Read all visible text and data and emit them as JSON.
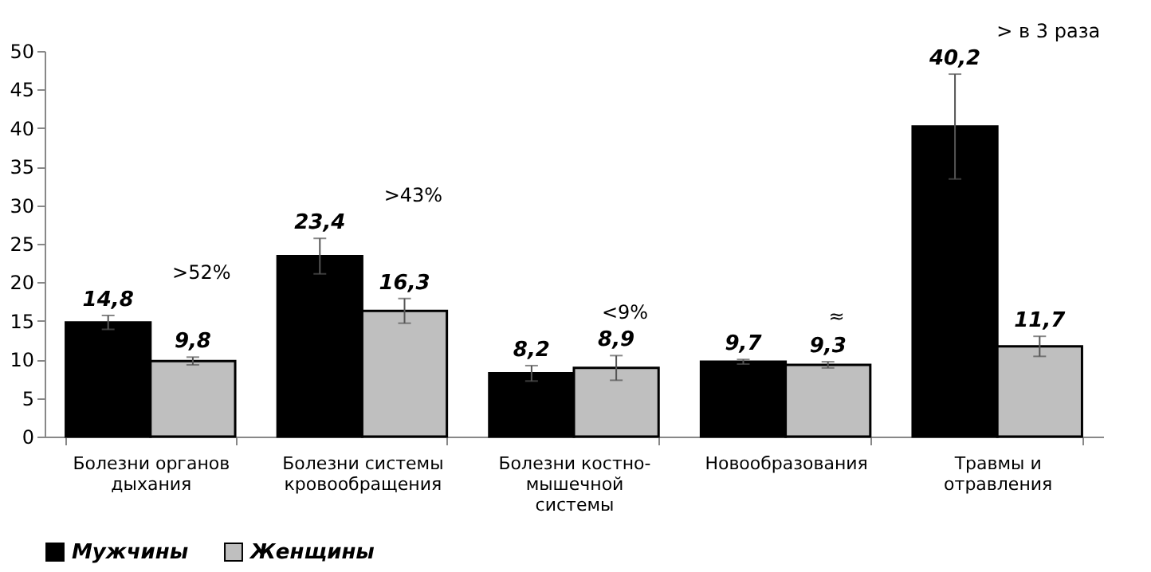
{
  "chart_data": {
    "type": "bar",
    "categories": [
      "Болезни органов дыхания",
      "Болезни системы кровообращения",
      "Болезни костно-мышечной системы",
      "Новообразования",
      "Травмы и отравления"
    ],
    "series": [
      {
        "name": "Мужчины",
        "color": "#000000",
        "values": [
          14.8,
          23.4,
          8.2,
          9.7,
          40.2
        ],
        "errors": [
          0.9,
          2.3,
          1.0,
          0.3,
          6.8
        ],
        "value_labels": [
          "14,8",
          "23,4",
          "8,2",
          "9,7",
          "40,2"
        ]
      },
      {
        "name": "Женщины",
        "color": "#bfbfbf",
        "values": [
          9.8,
          16.3,
          8.9,
          9.3,
          11.7
        ],
        "errors": [
          0.5,
          1.6,
          1.6,
          0.4,
          1.3
        ],
        "value_labels": [
          "9,8",
          "16,3",
          "8,9",
          "9,3",
          "11,7"
        ]
      }
    ],
    "ylim": [
      0,
      50
    ],
    "yticks": [
      0,
      5,
      10,
      15,
      20,
      25,
      30,
      35,
      40,
      45,
      50
    ],
    "legend": "bottom",
    "grid": false,
    "annotations": [
      ">52%",
      ">43%",
      "<9%",
      "≈",
      "> в 3 раза"
    ]
  }
}
